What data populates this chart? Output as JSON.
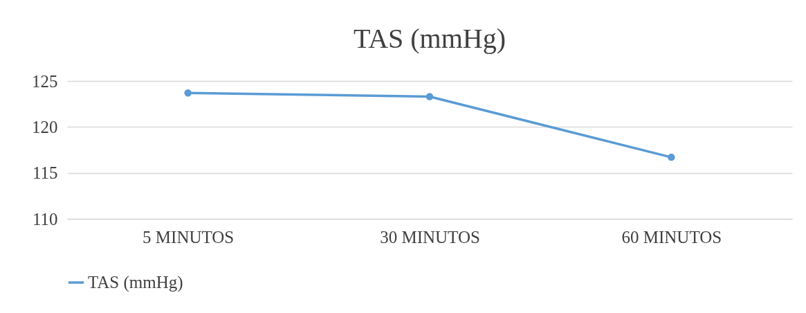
{
  "chart_data": {
    "type": "line",
    "title": "TAS (mmHg)",
    "categories": [
      "5 MINUTOS",
      "30 MINUTOS",
      "60 MINUTOS"
    ],
    "series": [
      {
        "name": "TAS (mmHg)",
        "color": "#5b9bd5",
        "values": [
          123.7,
          123.3,
          116.7
        ]
      }
    ],
    "ylim": [
      110,
      125
    ],
    "yticks": [
      110,
      115,
      120,
      125
    ],
    "grid": "y",
    "legend": "bottom",
    "marker": "circle",
    "line_style": "solid"
  }
}
